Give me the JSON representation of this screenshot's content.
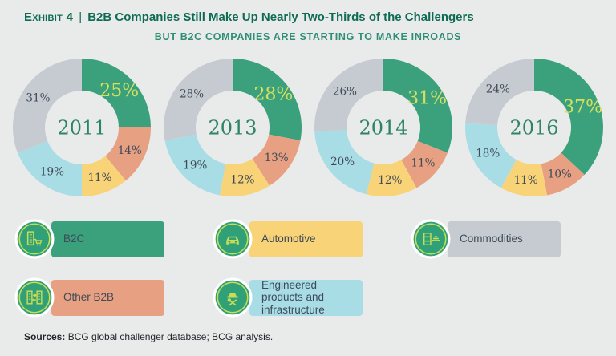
{
  "title": {
    "exhibit": "Exhibit 4",
    "separator": "|",
    "text": "B2B Companies Still Make Up Nearly Two-Thirds of the Challengers"
  },
  "subtitle": "BUT B2C COMPANIES ARE STARTING TO MAKE INROADS",
  "colors": {
    "b2c": "#3ba17d",
    "other_b2b": "#e8a083",
    "automotive": "#f9d377",
    "engineered": "#a9dde6",
    "commodities": "#c6cbd1",
    "highlight_label": "#d7e05c",
    "label_dark": "#3e4a57",
    "icon_circle": "#2fa077",
    "icon_glyph": "#c9dc55",
    "title_green": "#0e6b53",
    "subtitle_green": "#2f8e74",
    "year_green": "#2e8467",
    "background": "#e9eaea"
  },
  "chart_data": [
    {
      "type": "pie",
      "title": "2011",
      "center_label": "2011",
      "categories": [
        "B2C",
        "Other B2B",
        "Automotive",
        "Engineered products and infrastructure",
        "Commodities"
      ],
      "values": [
        25,
        14,
        11,
        19,
        31
      ],
      "labels": [
        "25%",
        "14%",
        "11%",
        "19%",
        "31%"
      ],
      "colors": [
        "#3ba17d",
        "#e8a083",
        "#f9d377",
        "#a9dde6",
        "#c6cbd1"
      ]
    },
    {
      "type": "pie",
      "title": "2013",
      "center_label": "2013",
      "categories": [
        "B2C",
        "Other B2B",
        "Automotive",
        "Engineered products and infrastructure",
        "Commodities"
      ],
      "values": [
        28,
        13,
        12,
        19,
        28
      ],
      "labels": [
        "28%",
        "13%",
        "12%",
        "19%",
        "28%"
      ],
      "colors": [
        "#3ba17d",
        "#e8a083",
        "#f9d377",
        "#a9dde6",
        "#c6cbd1"
      ]
    },
    {
      "type": "pie",
      "title": "2014",
      "center_label": "2014",
      "categories": [
        "B2C",
        "Other B2B",
        "Automotive",
        "Engineered products and infrastructure",
        "Commodities"
      ],
      "values": [
        31,
        11,
        12,
        20,
        26
      ],
      "labels": [
        "31%",
        "11%",
        "12%",
        "20%",
        "26%"
      ],
      "colors": [
        "#3ba17d",
        "#e8a083",
        "#f9d377",
        "#a9dde6",
        "#c6cbd1"
      ]
    },
    {
      "type": "pie",
      "title": "2016",
      "center_label": "2016",
      "categories": [
        "B2C",
        "Other B2B",
        "Automotive",
        "Engineered products and infrastructure",
        "Commodities"
      ],
      "values": [
        37,
        10,
        11,
        18,
        24
      ],
      "labels": [
        "37%",
        "10%",
        "11%",
        "18%",
        "24%"
      ],
      "colors": [
        "#3ba17d",
        "#e8a083",
        "#f9d377",
        "#a9dde6",
        "#c6cbd1"
      ]
    }
  ],
  "legend": [
    {
      "label": "B2C",
      "color_key": "b2c",
      "icon": "building-cart-icon"
    },
    {
      "label": "Automotive",
      "color_key": "automotive",
      "icon": "car-icon"
    },
    {
      "label": "Commodities",
      "color_key": "commodities",
      "icon": "drum-goldbars-icon"
    },
    {
      "label": "Other B2B",
      "color_key": "other_b2b",
      "icon": "buildings-exchange-icon"
    },
    {
      "label": "Engineered products and infrastructure",
      "color_key": "engineered",
      "icon": "hardhat-tools-icon"
    }
  ],
  "sources": {
    "label": "Sources:",
    "text": " BCG global challenger database; BCG analysis."
  }
}
